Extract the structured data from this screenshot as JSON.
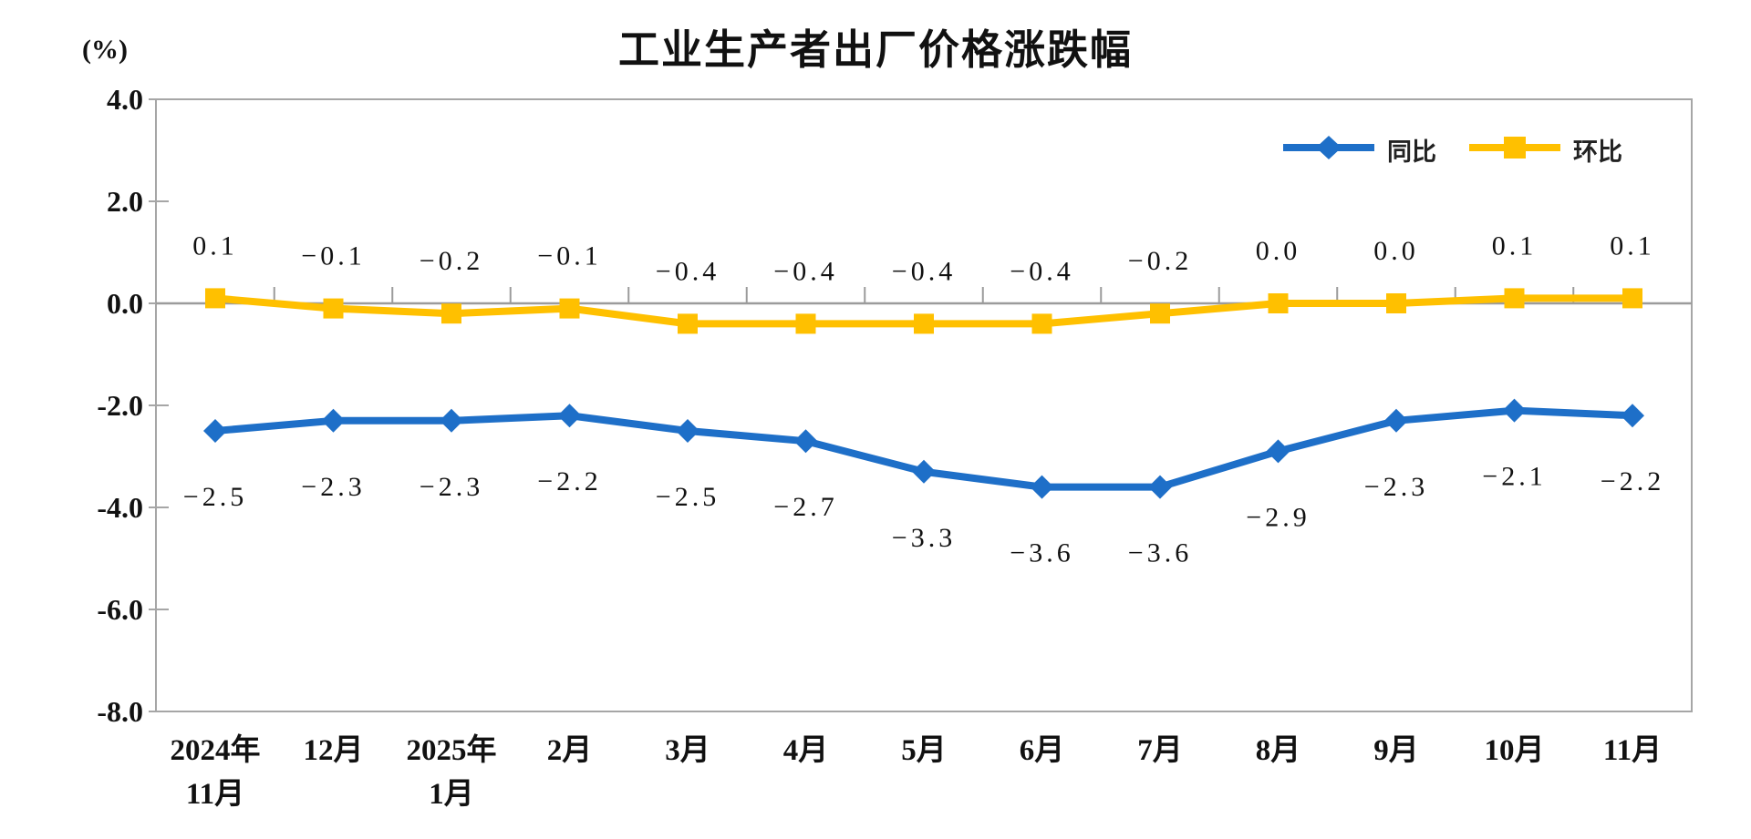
{
  "title": "工业生产者出厂价格涨跌幅",
  "y_axis_unit": "(%)",
  "chart_data": {
    "type": "line",
    "categories": [
      "2024年\n11月",
      "12月",
      "2025年\n1月",
      "2月",
      "3月",
      "4月",
      "5月",
      "6月",
      "7月",
      "8月",
      "9月",
      "10月",
      "11月"
    ],
    "series": [
      {
        "name": "同比",
        "marker": "diamond",
        "color": "#1E6FC8",
        "values": [
          -2.5,
          -2.3,
          -2.3,
          -2.2,
          -2.5,
          -2.7,
          -3.3,
          -3.6,
          -3.6,
          -2.9,
          -2.3,
          -2.1,
          -2.2
        ]
      },
      {
        "name": "环比",
        "marker": "square",
        "color": "#FFC000",
        "values": [
          0.1,
          -0.1,
          -0.2,
          -0.1,
          -0.4,
          -0.4,
          -0.4,
          -0.4,
          -0.2,
          0.0,
          0.0,
          0.1,
          0.1
        ]
      }
    ],
    "y_ticks": [
      4.0,
      2.0,
      0.0,
      -2.0,
      -4.0,
      -6.0,
      -8.0
    ],
    "ylim": [
      -8.0,
      4.0
    ],
    "grid": false,
    "legend_position": "top-right",
    "axis_color": "#A6A6A6",
    "zero_line_color": "#9B9B9B",
    "text_color": "#111111"
  }
}
